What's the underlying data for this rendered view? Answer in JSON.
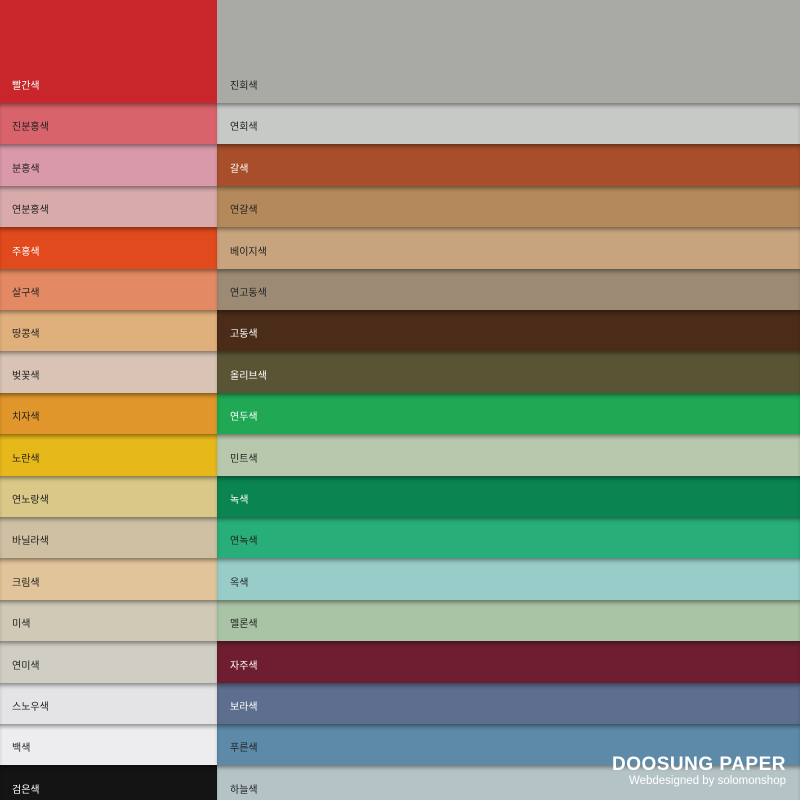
{
  "left_swatches": [
    {
      "label": "빨간색",
      "color": "#c8262a"
    },
    {
      "label": "진분홍색",
      "color": "#d8636a"
    },
    {
      "label": "분홍색",
      "color": "#d999a8"
    },
    {
      "label": "연분홍색",
      "color": "#d9aaaa"
    },
    {
      "label": "주홍색",
      "color": "#e04a1c"
    },
    {
      "label": "살구색",
      "color": "#e38a64"
    },
    {
      "label": "땅콩색",
      "color": "#e0b07c"
    },
    {
      "label": "벚꽃색",
      "color": "#d8c3b4"
    },
    {
      "label": "치자색",
      "color": "#e0962a"
    },
    {
      "label": "노란색",
      "color": "#e6b81a"
    },
    {
      "label": "연노랑색",
      "color": "#d9c888"
    },
    {
      "label": "바닐라색",
      "color": "#cfc0a4"
    },
    {
      "label": "크림색",
      "color": "#e2c49a"
    },
    {
      "label": "미색",
      "color": "#cfc9b6"
    },
    {
      "label": "연미색",
      "color": "#d0cec4"
    },
    {
      "label": "스노우색",
      "color": "#e4e4e6"
    },
    {
      "label": "백색",
      "color": "#ededef"
    },
    {
      "label": "검은색",
      "color": "#141414"
    }
  ],
  "right_swatches": [
    {
      "label": "진회색",
      "color": "#a8aaa3"
    },
    {
      "label": "연회색",
      "color": "#c7c9c7"
    },
    {
      "label": "갈색",
      "color": "#a84e2a"
    },
    {
      "label": "연갈색",
      "color": "#b48a5c"
    },
    {
      "label": "베이지색",
      "color": "#c8a47e"
    },
    {
      "label": "연고동색",
      "color": "#9c8a74"
    },
    {
      "label": "고동색",
      "color": "#4a2c18"
    },
    {
      "label": "올리브색",
      "color": "#5a5434"
    },
    {
      "label": "연두색",
      "color": "#20a854"
    },
    {
      "label": "민트색",
      "color": "#b8c8ac"
    },
    {
      "label": "녹색",
      "color": "#0a8450"
    },
    {
      "label": "연녹색",
      "color": "#28ae78"
    },
    {
      "label": "옥색",
      "color": "#98ccc8"
    },
    {
      "label": "멜론색",
      "color": "#a8c4a4"
    },
    {
      "label": "자주색",
      "color": "#6e1e30"
    },
    {
      "label": "보라색",
      "color": "#5e6e8e"
    },
    {
      "label": "푸른색",
      "color": "#5c8aa8"
    },
    {
      "label": "하늘색",
      "color": "#b4c4c6"
    }
  ],
  "brand": {
    "name": "DOOSUNG PAPER",
    "credit": "Webdesigned by solomonshop"
  }
}
